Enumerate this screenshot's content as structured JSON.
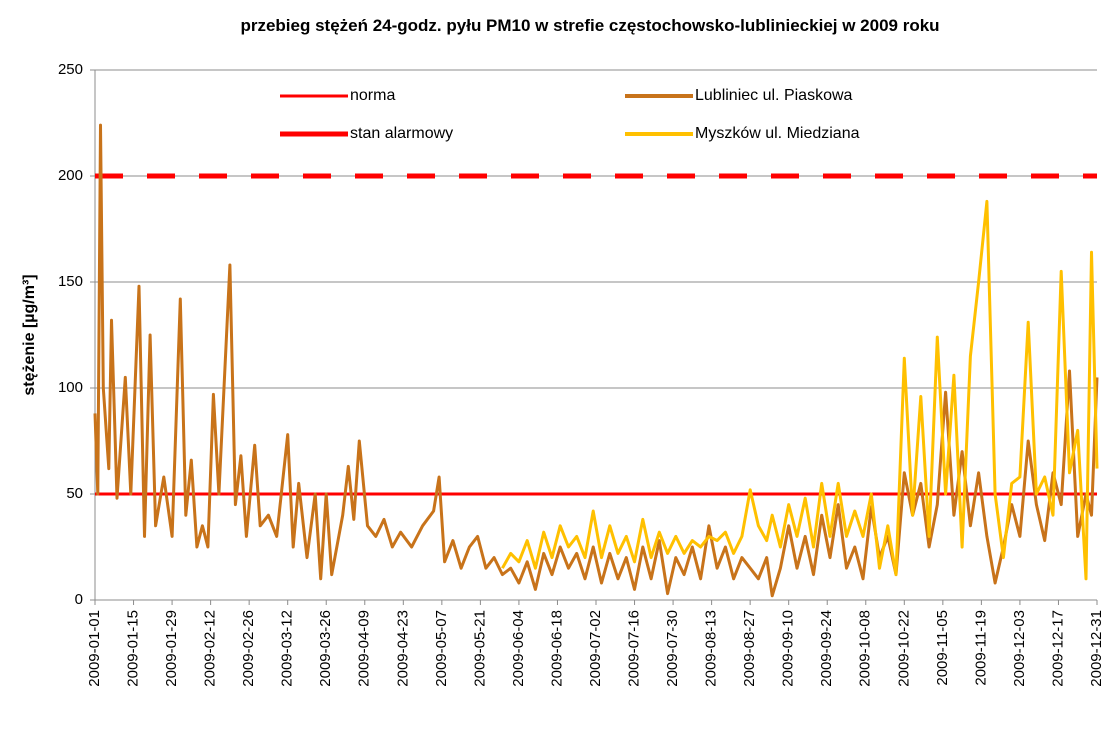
{
  "chart_data": {
    "type": "line",
    "title": "przebieg stężeń 24-godz. pyłu PM10 w  strefie  częstochowsko-lublinieckiej w 2009 roku",
    "y_label": "stężenie [µg/m³]",
    "ylim": [
      0,
      250
    ],
    "yticks": [
      0,
      50,
      100,
      150,
      200,
      250
    ],
    "grid": true,
    "xlim": [
      "2009-01-01",
      "2009-12-31"
    ],
    "xticks": [
      "2009-01-01",
      "2009-01-15",
      "2009-01-29",
      "2009-02-12",
      "2009-02-26",
      "2009-03-12",
      "2009-03-26",
      "2009-04-09",
      "2009-04-23",
      "2009-05-07",
      "2009-05-21",
      "2009-06-04",
      "2009-06-18",
      "2009-07-02",
      "2009-07-16",
      "2009-07-30",
      "2009-08-13",
      "2009-08-27",
      "2009-09-10",
      "2009-09-24",
      "2009-10-08",
      "2009-10-22",
      "2009-11-05",
      "2009-11-19",
      "2009-12-03",
      "2009-12-17",
      "2009-12-31"
    ],
    "reference_lines": [
      {
        "name": "norma",
        "value": 50,
        "color": "#ff0000",
        "style": "solid"
      },
      {
        "name": "stan alarmowy",
        "value": 200,
        "color": "#ff0000",
        "style": "dashed"
      }
    ],
    "x": [
      "2009-01-01",
      "2009-01-02",
      "2009-01-03",
      "2009-01-04",
      "2009-01-06",
      "2009-01-07",
      "2009-01-09",
      "2009-01-12",
      "2009-01-14",
      "2009-01-17",
      "2009-01-19",
      "2009-01-21",
      "2009-01-23",
      "2009-01-26",
      "2009-01-29",
      "2009-02-01",
      "2009-02-03",
      "2009-02-05",
      "2009-02-07",
      "2009-02-09",
      "2009-02-11",
      "2009-02-13",
      "2009-02-15",
      "2009-02-19",
      "2009-02-21",
      "2009-02-23",
      "2009-02-25",
      "2009-02-28",
      "2009-03-02",
      "2009-03-05",
      "2009-03-08",
      "2009-03-12",
      "2009-03-14",
      "2009-03-16",
      "2009-03-19",
      "2009-03-22",
      "2009-03-24",
      "2009-03-26",
      "2009-03-28",
      "2009-04-01",
      "2009-04-03",
      "2009-04-05",
      "2009-04-07",
      "2009-04-10",
      "2009-04-13",
      "2009-04-16",
      "2009-04-19",
      "2009-04-22",
      "2009-04-26",
      "2009-04-30",
      "2009-05-04",
      "2009-05-06",
      "2009-05-08",
      "2009-05-11",
      "2009-05-14",
      "2009-05-17",
      "2009-05-20",
      "2009-05-23",
      "2009-05-26",
      "2009-05-29",
      "2009-06-01",
      "2009-06-04",
      "2009-06-07",
      "2009-06-10",
      "2009-06-13",
      "2009-06-16",
      "2009-06-19",
      "2009-06-22",
      "2009-06-25",
      "2009-06-28",
      "2009-07-01",
      "2009-07-04",
      "2009-07-07",
      "2009-07-10",
      "2009-07-13",
      "2009-07-16",
      "2009-07-19",
      "2009-07-22",
      "2009-07-25",
      "2009-07-28",
      "2009-07-31",
      "2009-08-03",
      "2009-08-06",
      "2009-08-09",
      "2009-08-12",
      "2009-08-15",
      "2009-08-18",
      "2009-08-21",
      "2009-08-24",
      "2009-08-27",
      "2009-08-30",
      "2009-09-02",
      "2009-09-04",
      "2009-09-07",
      "2009-09-10",
      "2009-09-13",
      "2009-09-16",
      "2009-09-19",
      "2009-09-22",
      "2009-09-25",
      "2009-09-28",
      "2009-10-01",
      "2009-10-04",
      "2009-10-07",
      "2009-10-10",
      "2009-10-13",
      "2009-10-16",
      "2009-10-19",
      "2009-10-22",
      "2009-10-25",
      "2009-10-28",
      "2009-10-31",
      "2009-11-03",
      "2009-11-06",
      "2009-11-09",
      "2009-11-12",
      "2009-11-15",
      "2009-11-18",
      "2009-11-21",
      "2009-11-24",
      "2009-11-27",
      "2009-11-30",
      "2009-12-03",
      "2009-12-06",
      "2009-12-09",
      "2009-12-12",
      "2009-12-15",
      "2009-12-18",
      "2009-12-21",
      "2009-12-24",
      "2009-12-27",
      "2009-12-29",
      "2009-12-31"
    ],
    "series": [
      {
        "name": "Lubliniec ul. Piaskowa",
        "color": "#c8731a",
        "values": [
          88,
          50,
          224,
          100,
          62,
          132,
          48,
          105,
          50,
          148,
          30,
          125,
          35,
          58,
          30,
          142,
          40,
          66,
          25,
          35,
          25,
          97,
          50,
          158,
          45,
          68,
          30,
          73,
          35,
          40,
          30,
          78,
          25,
          55,
          20,
          50,
          10,
          50,
          12,
          40,
          63,
          38,
          75,
          35,
          30,
          38,
          25,
          32,
          25,
          35,
          42,
          58,
          18,
          28,
          15,
          25,
          30,
          15,
          20,
          12,
          15,
          8,
          18,
          5,
          22,
          12,
          25,
          15,
          22,
          10,
          25,
          8,
          22,
          10,
          20,
          5,
          25,
          10,
          28,
          3,
          20,
          12,
          25,
          10,
          35,
          15,
          25,
          10,
          20,
          15,
          10,
          20,
          2,
          15,
          35,
          15,
          30,
          12,
          40,
          20,
          45,
          15,
          25,
          10,
          44,
          20,
          30,
          12,
          60,
          40,
          55,
          25,
          45,
          98,
          40,
          70,
          35,
          60,
          30,
          8,
          25,
          45,
          30,
          75,
          45,
          28,
          60,
          45,
          108,
          30,
          50,
          40,
          105
        ]
      },
      {
        "name": "Myszków ul. Miedziana",
        "color": "#ffc000",
        "values": [
          null,
          null,
          null,
          null,
          null,
          null,
          null,
          null,
          null,
          null,
          null,
          null,
          null,
          null,
          null,
          null,
          null,
          null,
          null,
          null,
          null,
          null,
          null,
          null,
          null,
          null,
          null,
          null,
          null,
          null,
          null,
          null,
          null,
          null,
          null,
          null,
          null,
          null,
          null,
          null,
          null,
          null,
          null,
          null,
          null,
          null,
          null,
          null,
          null,
          null,
          null,
          null,
          null,
          null,
          null,
          null,
          null,
          null,
          null,
          15,
          22,
          18,
          28,
          15,
          32,
          20,
          35,
          25,
          30,
          20,
          42,
          20,
          35,
          22,
          30,
          18,
          38,
          20,
          32,
          22,
          30,
          22,
          28,
          25,
          30,
          28,
          32,
          22,
          30,
          52,
          35,
          28,
          40,
          25,
          45,
          30,
          48,
          25,
          55,
          30,
          55,
          30,
          42,
          30,
          50,
          15,
          35,
          12,
          114,
          40,
          96,
          30,
          124,
          50,
          106,
          25,
          115,
          150,
          188,
          50,
          20,
          55,
          58,
          131,
          50,
          58,
          40,
          155,
          60,
          80,
          10,
          164,
          62
        ]
      }
    ]
  }
}
